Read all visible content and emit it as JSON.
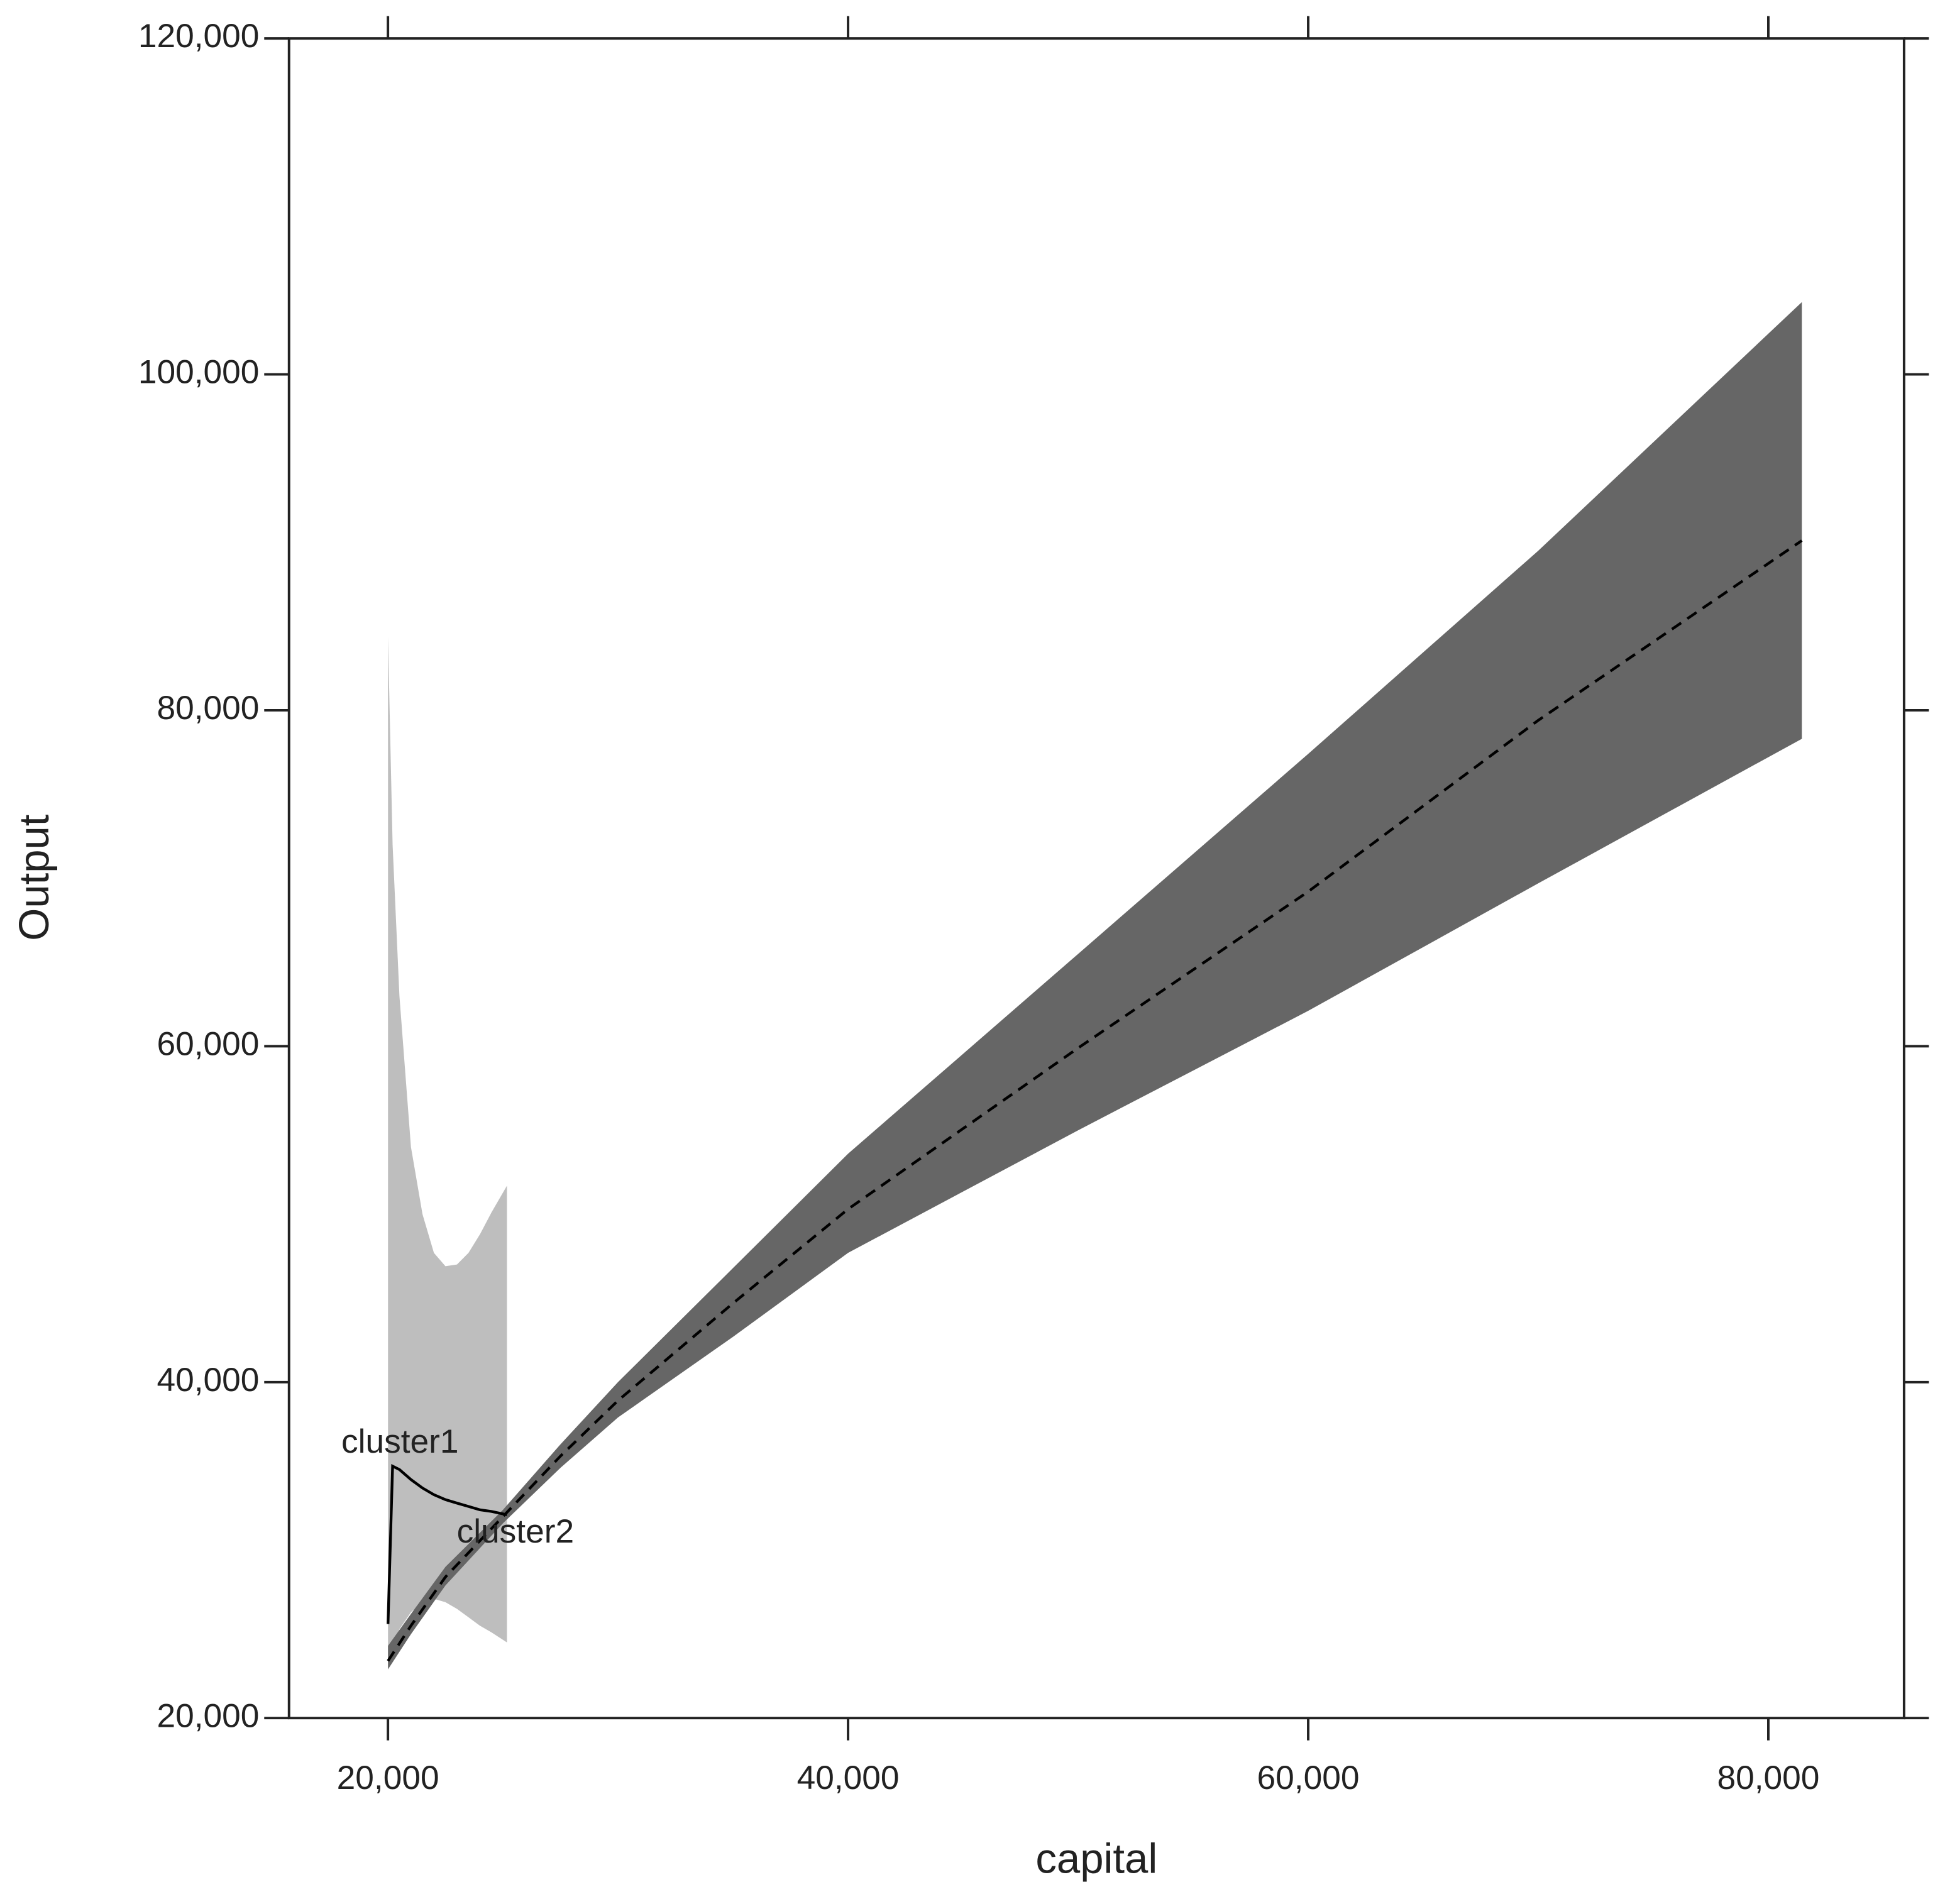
{
  "chart_data": {
    "type": "ribbon-line",
    "x_label": "capital",
    "y_label": "Output",
    "xlim": [
      15700,
      85900
    ],
    "ylim": [
      20000,
      120000
    ],
    "xticks": [
      {
        "value": 20000,
        "label": "20,000"
      },
      {
        "value": 40000,
        "label": "40,000"
      },
      {
        "value": 60000,
        "label": "60,000"
      },
      {
        "value": 80000,
        "label": "80,000"
      }
    ],
    "yticks": [
      {
        "value": 20000,
        "label": "20,000"
      },
      {
        "value": 40000,
        "label": "40,000"
      },
      {
        "value": 60000,
        "label": "60,000"
      },
      {
        "value": 80000,
        "label": "80,000"
      },
      {
        "value": 100000,
        "label": "100,000"
      },
      {
        "value": 120000,
        "label": "120,000"
      }
    ],
    "series": [
      {
        "name": "cluster1",
        "color": "#bebebe",
        "line_color": "#000000",
        "linestyle": "solid",
        "x": [
          20000,
          20200,
          20500,
          21000,
          21500,
          22000,
          22500,
          23000,
          23500,
          24000,
          24500,
          25175
        ],
        "values": [
          25600,
          35000,
          34800,
          34200,
          33700,
          33300,
          33000,
          32800,
          32600,
          32400,
          32300,
          32100
        ],
        "upper": [
          84400,
          72000,
          63000,
          54000,
          50000,
          47700,
          46900,
          47000,
          47700,
          48800,
          50100,
          51700
        ],
        "lower": [
          23000,
          24300,
          25300,
          26300,
          26900,
          27100,
          26900,
          26500,
          26000,
          25500,
          25100,
          24500
        ]
      },
      {
        "name": "cluster2",
        "color": "#666666",
        "line_color": "#000000",
        "linestyle": "dashed",
        "x": [
          20000,
          21000,
          22500,
          25000,
          27500,
          30000,
          35000,
          40000,
          50000,
          60000,
          70000,
          81455
        ],
        "values": [
          23400,
          25500,
          28400,
          32000,
          35600,
          38900,
          44700,
          50300,
          59900,
          69200,
          79400,
          90100
        ],
        "upper": [
          24300,
          26200,
          29000,
          32400,
          36300,
          40000,
          46800,
          53600,
          65500,
          77400,
          89500,
          104300
        ],
        "lower": [
          22900,
          25000,
          27900,
          31600,
          34900,
          37900,
          42700,
          47700,
          55000,
          62100,
          69700,
          78300
        ]
      }
    ]
  }
}
